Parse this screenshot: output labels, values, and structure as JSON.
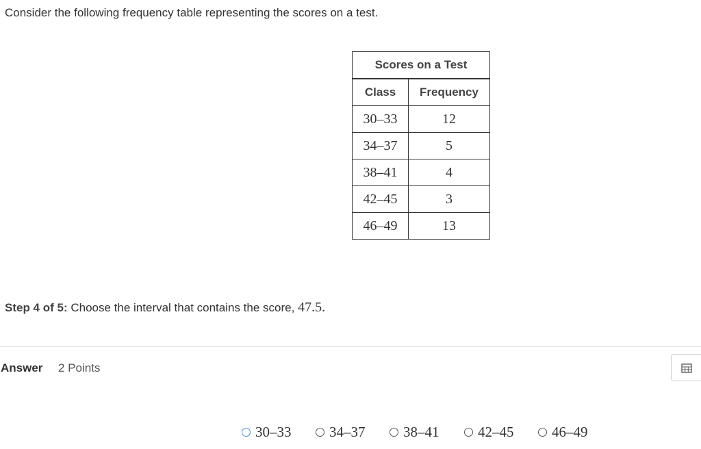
{
  "question": {
    "intro": "Consider the following frequency table representing the scores on a test."
  },
  "table": {
    "title": "Scores on a Test",
    "headers": [
      "Class",
      "Frequency"
    ],
    "rows": [
      [
        "30–33",
        "12"
      ],
      [
        "34–37",
        "5"
      ],
      [
        "38–41",
        "4"
      ],
      [
        "42–45",
        "3"
      ],
      [
        "46–49",
        "13"
      ]
    ]
  },
  "step": {
    "label": "Step 4 of 5:",
    "text": "Choose the interval that contains the score,",
    "value": "47.5."
  },
  "answer": {
    "label": "Answer",
    "points": "2 Points",
    "options": [
      "30–33",
      "34–37",
      "38–41",
      "42–45",
      "46–49"
    ]
  }
}
